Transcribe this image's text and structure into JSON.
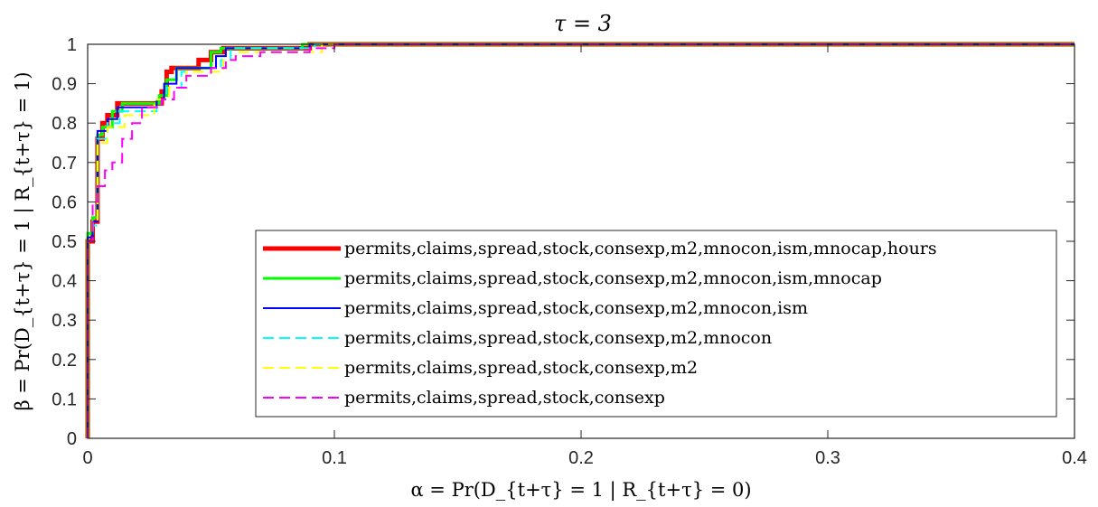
{
  "chart_data": {
    "type": "line",
    "title": "τ = 3",
    "xlabel": "α = Pr(D_{t+τ} = 1 | R_{t+τ} = 0)",
    "ylabel": "β = Pr(D_{t+τ} = 1 | R_{t+τ} = 1)",
    "xlim": [
      0,
      0.4
    ],
    "ylim": [
      0,
      1
    ],
    "xticks": [
      "0",
      "0.1",
      "0.2",
      "0.3",
      "0.4"
    ],
    "yticks": [
      "0",
      "0.1",
      "0.2",
      "0.3",
      "0.4",
      "0.5",
      "0.6",
      "0.7",
      "0.8",
      "0.9",
      "1"
    ],
    "grid": false,
    "legend_position": "bottom-right",
    "series": [
      {
        "name": "permits,claims,spread,stock,consexp,m2,mnocon,ism,mnocap,hours",
        "color": "#ff0000",
        "style": "solid",
        "width": 5,
        "x": [
          0,
          0,
          0.002,
          0.002,
          0.004,
          0.004,
          0.006,
          0.006,
          0.008,
          0.008,
          0.012,
          0.012,
          0.03,
          0.03,
          0.032,
          0.032,
          0.034,
          0.034,
          0.045,
          0.045,
          0.05,
          0.05,
          0.055,
          0.055,
          0.09,
          0.09,
          0.4
        ],
        "y": [
          0,
          0.5,
          0.5,
          0.55,
          0.55,
          0.76,
          0.76,
          0.8,
          0.8,
          0.82,
          0.82,
          0.85,
          0.85,
          0.88,
          0.88,
          0.93,
          0.93,
          0.94,
          0.94,
          0.96,
          0.96,
          0.98,
          0.98,
          0.99,
          0.99,
          1,
          1
        ]
      },
      {
        "name": "permits,claims,spread,stock,consexp,m2,mnocon,ism,mnocap",
        "color": "#00ff00",
        "style": "solid",
        "width": 3,
        "x": [
          0,
          0,
          0.002,
          0.002,
          0.004,
          0.004,
          0.006,
          0.006,
          0.01,
          0.01,
          0.014,
          0.014,
          0.029,
          0.029,
          0.032,
          0.032,
          0.036,
          0.036,
          0.05,
          0.05,
          0.054,
          0.054,
          0.087,
          0.087,
          0.4
        ],
        "y": [
          0,
          0.52,
          0.52,
          0.56,
          0.56,
          0.77,
          0.77,
          0.79,
          0.79,
          0.83,
          0.83,
          0.85,
          0.85,
          0.87,
          0.87,
          0.91,
          0.91,
          0.94,
          0.94,
          0.98,
          0.98,
          0.99,
          0.99,
          1,
          1
        ]
      },
      {
        "name": "permits,claims,spread,stock,consexp,m2,mnocon,ism",
        "color": "#0000ff",
        "style": "solid",
        "width": 2,
        "x": [
          0,
          0,
          0.002,
          0.002,
          0.004,
          0.004,
          0.008,
          0.008,
          0.012,
          0.012,
          0.028,
          0.028,
          0.031,
          0.031,
          0.036,
          0.036,
          0.052,
          0.052,
          0.056,
          0.056,
          0.09,
          0.09,
          0.4
        ],
        "y": [
          0,
          0.51,
          0.51,
          0.55,
          0.55,
          0.78,
          0.78,
          0.81,
          0.81,
          0.84,
          0.84,
          0.86,
          0.86,
          0.9,
          0.9,
          0.94,
          0.94,
          0.97,
          0.97,
          0.99,
          0.99,
          1,
          1
        ]
      },
      {
        "name": "permits,claims,spread,stock,consexp,m2,mnocon",
        "color": "#00ffff",
        "style": "dashed",
        "width": 2,
        "x": [
          0,
          0,
          0.002,
          0.002,
          0.004,
          0.004,
          0.008,
          0.008,
          0.013,
          0.013,
          0.028,
          0.028,
          0.032,
          0.032,
          0.038,
          0.038,
          0.054,
          0.054,
          0.058,
          0.058,
          0.092,
          0.092,
          0.4
        ],
        "y": [
          0,
          0.5,
          0.5,
          0.54,
          0.54,
          0.76,
          0.76,
          0.8,
          0.8,
          0.83,
          0.83,
          0.86,
          0.86,
          0.89,
          0.89,
          0.93,
          0.93,
          0.96,
          0.96,
          0.99,
          0.99,
          1,
          1
        ]
      },
      {
        "name": "permits,claims,spread,stock,consexp,m2",
        "color": "#ffff00",
        "style": "dashed",
        "width": 2,
        "x": [
          0,
          0,
          0.002,
          0.002,
          0.004,
          0.004,
          0.008,
          0.008,
          0.015,
          0.015,
          0.027,
          0.027,
          0.033,
          0.033,
          0.04,
          0.04,
          0.055,
          0.055,
          0.06,
          0.06,
          0.095,
          0.095,
          0.4
        ],
        "y": [
          0,
          0.5,
          0.5,
          0.55,
          0.55,
          0.75,
          0.75,
          0.79,
          0.79,
          0.82,
          0.82,
          0.86,
          0.86,
          0.89,
          0.89,
          0.93,
          0.93,
          0.96,
          0.96,
          0.98,
          0.98,
          1,
          1
        ]
      },
      {
        "name": "permits,claims,spread,stock,consexp",
        "color": "#ff00ff",
        "style": "dashed",
        "width": 2,
        "x": [
          0,
          0,
          0.002,
          0.002,
          0.004,
          0.004,
          0.007,
          0.007,
          0.01,
          0.01,
          0.014,
          0.014,
          0.018,
          0.018,
          0.022,
          0.022,
          0.03,
          0.03,
          0.035,
          0.035,
          0.04,
          0.04,
          0.05,
          0.05,
          0.056,
          0.056,
          0.06,
          0.06,
          0.07,
          0.07,
          0.09,
          0.09,
          0.1,
          0.1,
          0.105,
          0.105,
          0.4
        ],
        "y": [
          0,
          0.5,
          0.5,
          0.6,
          0.6,
          0.64,
          0.64,
          0.68,
          0.68,
          0.7,
          0.7,
          0.76,
          0.76,
          0.8,
          0.8,
          0.84,
          0.84,
          0.86,
          0.86,
          0.89,
          0.89,
          0.92,
          0.92,
          0.94,
          0.94,
          0.96,
          0.96,
          0.97,
          0.97,
          0.98,
          0.98,
          0.99,
          0.99,
          1,
          1,
          1,
          1
        ]
      }
    ]
  }
}
